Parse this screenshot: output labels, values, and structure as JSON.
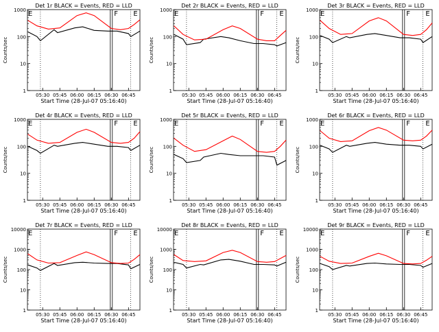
{
  "colors": {
    "events": "#000000",
    "lld": "#ff0000",
    "axes": "#000000"
  },
  "chart_data": [
    {
      "type": "line",
      "title": "Det 1r BLACK = Events, RED = LLD",
      "xlabel": "Start Time (28-Jul-07 05:16:40)",
      "ylabel": "Counts/sec",
      "y_scale": "log",
      "ylim": [
        1,
        1000
      ],
      "y_ticks": [
        1,
        10,
        100,
        1000
      ],
      "xlim": [
        "05:16:40",
        "06:55:00"
      ],
      "x_ticks": [
        "05:30",
        "05:45",
        "06:00",
        "06:15",
        "06:30",
        "06:45"
      ],
      "markers": {
        "F": "06:30",
        "E": "06:48"
      },
      "series": [
        {
          "name": "Events",
          "x": [
            "05:17",
            "05:25",
            "05:28",
            "05:40",
            "05:43",
            "05:58",
            "06:05",
            "06:15",
            "06:27",
            "06:35",
            "06:45",
            "06:47",
            "06:55"
          ],
          "values": [
            150,
            100,
            70,
            180,
            140,
            210,
            230,
            170,
            160,
            160,
            130,
            100,
            160
          ]
        },
        {
          "name": "LLD",
          "x": [
            "05:17",
            "05:25",
            "05:35",
            "05:45",
            "06:00",
            "06:08",
            "06:15",
            "06:30",
            "06:38",
            "06:45",
            "06:50",
            "06:55"
          ],
          "values": [
            400,
            250,
            190,
            210,
            600,
            760,
            600,
            200,
            180,
            200,
            280,
            420
          ]
        }
      ]
    },
    {
      "type": "line",
      "title": "Det 2r BLACK = Events, RED = LLD",
      "xlabel": "Start Time (28-Jul-07 05:16:40)",
      "ylabel": "Counts/sec",
      "y_scale": "log",
      "ylim": [
        1,
        1000
      ],
      "y_ticks": [
        1,
        10,
        100,
        1000
      ],
      "xlim": [
        "05:16:40",
        "06:55:00"
      ],
      "x_ticks": [
        "05:30",
        "05:45",
        "06:00",
        "06:15",
        "06:30",
        "06:45"
      ],
      "markers": {
        "F": "06:30",
        "E": "06:48"
      },
      "series": [
        {
          "name": "Events",
          "x": [
            "05:17",
            "05:25",
            "05:28",
            "05:40",
            "05:43",
            "05:58",
            "06:05",
            "06:15",
            "06:27",
            "06:35",
            "06:45",
            "06:47",
            "06:55"
          ],
          "values": [
            120,
            80,
            50,
            60,
            80,
            100,
            90,
            70,
            55,
            55,
            50,
            45,
            60
          ]
        },
        {
          "name": "LLD",
          "x": [
            "05:17",
            "05:25",
            "05:35",
            "05:45",
            "06:00",
            "06:08",
            "06:15",
            "06:30",
            "06:38",
            "06:45",
            "06:50",
            "06:55"
          ],
          "values": [
            250,
            120,
            75,
            80,
            180,
            250,
            200,
            80,
            70,
            70,
            110,
            170
          ]
        }
      ]
    },
    {
      "type": "line",
      "title": "Det 3r BLACK = Events, RED = LLD",
      "xlabel": "Start Time (28-Jul-07 05:16:40)",
      "ylabel": "Counts/sec",
      "y_scale": "log",
      "ylim": [
        1,
        1000
      ],
      "y_ticks": [
        1,
        10,
        100,
        1000
      ],
      "xlim": [
        "05:16:40",
        "06:55:00"
      ],
      "x_ticks": [
        "05:30",
        "05:45",
        "06:00",
        "06:15",
        "06:30",
        "06:45"
      ],
      "markers": {
        "F": "06:30",
        "E": "06:48"
      },
      "series": [
        {
          "name": "Events",
          "x": [
            "05:17",
            "05:25",
            "05:28",
            "05:40",
            "05:43",
            "05:58",
            "06:05",
            "06:15",
            "06:27",
            "06:35",
            "06:45",
            "06:47",
            "06:55"
          ],
          "values": [
            110,
            80,
            60,
            100,
            90,
            120,
            130,
            110,
            90,
            90,
            80,
            60,
            100
          ]
        },
        {
          "name": "LLD",
          "x": [
            "05:17",
            "05:25",
            "05:35",
            "05:45",
            "06:00",
            "06:08",
            "06:15",
            "06:30",
            "06:38",
            "06:45",
            "06:50",
            "06:55"
          ],
          "values": [
            400,
            200,
            120,
            130,
            380,
            500,
            380,
            120,
            110,
            120,
            180,
            320
          ]
        }
      ]
    },
    {
      "type": "line",
      "title": "Det 4r BLACK = Events, RED = LLD",
      "xlabel": "Start Time (28-Jul-07 05:16:40)",
      "ylabel": "Counts/sec",
      "y_scale": "log",
      "ylim": [
        1,
        1000
      ],
      "y_ticks": [
        1,
        10,
        100,
        1000
      ],
      "xlim": [
        "05:16:40",
        "06:55:00"
      ],
      "x_ticks": [
        "05:30",
        "05:45",
        "06:00",
        "06:15",
        "06:30",
        "06:45"
      ],
      "markers": {
        "F": "06:30",
        "E": "06:48"
      },
      "series": [
        {
          "name": "Events",
          "x": [
            "05:17",
            "05:25",
            "05:28",
            "05:40",
            "05:43",
            "05:58",
            "06:05",
            "06:15",
            "06:27",
            "06:35",
            "06:45",
            "06:47",
            "06:55"
          ],
          "values": [
            100,
            70,
            55,
            110,
            100,
            130,
            140,
            120,
            100,
            100,
            90,
            70,
            110
          ]
        },
        {
          "name": "LLD",
          "x": [
            "05:17",
            "05:25",
            "05:35",
            "05:45",
            "06:00",
            "06:08",
            "06:15",
            "06:30",
            "06:38",
            "06:45",
            "06:50",
            "06:55"
          ],
          "values": [
            280,
            170,
            130,
            140,
            330,
            430,
            330,
            140,
            130,
            140,
            200,
            350
          ]
        }
      ]
    },
    {
      "type": "line",
      "title": "Det 5r BLACK = Events, RED = LLD",
      "xlabel": "Start Time (28-Jul-07 05:16:40)",
      "ylabel": "Counts/sec",
      "y_scale": "log",
      "ylim": [
        1,
        1000
      ],
      "y_ticks": [
        1,
        10,
        100,
        1000
      ],
      "xlim": [
        "05:16:40",
        "06:55:00"
      ],
      "x_ticks": [
        "05:30",
        "05:45",
        "06:00",
        "06:15",
        "06:30",
        "06:45"
      ],
      "markers": {
        "F": "06:30",
        "E": "06:48"
      },
      "series": [
        {
          "name": "Events",
          "x": [
            "05:17",
            "05:25",
            "05:28",
            "05:40",
            "05:43",
            "05:58",
            "06:05",
            "06:15",
            "06:27",
            "06:35",
            "06:45",
            "06:47",
            "06:55"
          ],
          "values": [
            50,
            35,
            25,
            30,
            40,
            55,
            50,
            45,
            45,
            45,
            40,
            20,
            30
          ]
        },
        {
          "name": "LLD",
          "x": [
            "05:17",
            "05:25",
            "05:35",
            "05:45",
            "06:00",
            "06:08",
            "06:15",
            "06:30",
            "06:38",
            "06:45",
            "06:50",
            "06:55"
          ],
          "values": [
            200,
            110,
            65,
            75,
            160,
            240,
            180,
            65,
            60,
            65,
            100,
            170
          ]
        }
      ]
    },
    {
      "type": "line",
      "title": "Det 6r BLACK = Events, RED = LLD",
      "xlabel": "Start Time (28-Jul-07 05:16:40)",
      "ylabel": "Counts/sec",
      "y_scale": "log",
      "ylim": [
        1,
        1000
      ],
      "y_ticks": [
        1,
        10,
        100,
        1000
      ],
      "xlim": [
        "05:16:40",
        "06:55:00"
      ],
      "x_ticks": [
        "05:30",
        "05:45",
        "06:00",
        "06:15",
        "06:30",
        "06:45"
      ],
      "markers": {
        "F": "06:30",
        "E": "06:48"
      },
      "series": [
        {
          "name": "Events",
          "x": [
            "05:17",
            "05:25",
            "05:28",
            "05:40",
            "05:43",
            "05:58",
            "06:05",
            "06:15",
            "06:27",
            "06:35",
            "06:45",
            "06:47",
            "06:55"
          ],
          "values": [
            110,
            80,
            60,
            110,
            100,
            130,
            140,
            120,
            110,
            110,
            100,
            80,
            120
          ]
        },
        {
          "name": "LLD",
          "x": [
            "05:17",
            "05:25",
            "05:35",
            "05:45",
            "06:00",
            "06:08",
            "06:15",
            "06:30",
            "06:38",
            "06:45",
            "06:50",
            "06:55"
          ],
          "values": [
            380,
            200,
            150,
            160,
            380,
            500,
            400,
            170,
            160,
            170,
            240,
            400
          ]
        }
      ]
    },
    {
      "type": "line",
      "title": "Det 7r BLACK = Events, RED = LLD",
      "xlabel": "Start Time (28-Jul-07 05:16:40)",
      "ylabel": "Counts/sec",
      "y_scale": "log",
      "ylim": [
        1,
        10000
      ],
      "y_ticks": [
        1,
        10,
        100,
        1000,
        10000
      ],
      "xlim": [
        "05:16:40",
        "06:55:00"
      ],
      "x_ticks": [
        "05:30",
        "05:45",
        "06:00",
        "06:15",
        "06:30",
        "06:45"
      ],
      "markers": {
        "F": "06:30",
        "E": "06:48"
      },
      "series": [
        {
          "name": "Events",
          "x": [
            "05:17",
            "05:25",
            "05:28",
            "05:40",
            "05:43",
            "05:58",
            "06:05",
            "06:15",
            "06:27",
            "06:35",
            "06:45",
            "06:47",
            "06:55"
          ],
          "values": [
            170,
            120,
            90,
            200,
            160,
            220,
            230,
            210,
            200,
            200,
            170,
            110,
            180
          ]
        },
        {
          "name": "LLD",
          "x": [
            "05:17",
            "05:25",
            "05:35",
            "05:45",
            "06:00",
            "06:08",
            "06:15",
            "06:30",
            "06:38",
            "06:45",
            "06:50",
            "06:55"
          ],
          "values": [
            600,
            300,
            210,
            220,
            500,
            750,
            550,
            220,
            200,
            210,
            320,
            550
          ]
        }
      ]
    },
    {
      "type": "line",
      "title": "Det 8r BLACK = Events, RED = LLD",
      "xlabel": "Start Time (28-Jul-07 05:16:40)",
      "ylabel": "Counts/sec",
      "y_scale": "log",
      "ylim": [
        1,
        10000
      ],
      "y_ticks": [
        1,
        10,
        100,
        1000,
        10000
      ],
      "xlim": [
        "05:16:40",
        "06:55:00"
      ],
      "x_ticks": [
        "05:30",
        "05:45",
        "06:00",
        "06:15",
        "06:30",
        "06:45"
      ],
      "markers": {
        "F": "06:30",
        "E": "06:48"
      },
      "series": [
        {
          "name": "Events",
          "x": [
            "05:17",
            "05:25",
            "05:28",
            "05:40",
            "05:43",
            "05:58",
            "06:05",
            "06:15",
            "06:27",
            "06:35",
            "06:45",
            "06:47",
            "06:55"
          ],
          "values": [
            230,
            180,
            120,
            180,
            170,
            300,
            320,
            260,
            180,
            180,
            170,
            150,
            230
          ]
        },
        {
          "name": "LLD",
          "x": [
            "05:17",
            "05:25",
            "05:35",
            "05:45",
            "06:00",
            "06:08",
            "06:15",
            "06:30",
            "06:38",
            "06:45",
            "06:50",
            "06:55"
          ],
          "values": [
            550,
            280,
            250,
            270,
            700,
            900,
            700,
            250,
            230,
            250,
            350,
            500
          ]
        }
      ]
    },
    {
      "type": "line",
      "title": "Det 9r BLACK = Events, RED = LLD",
      "xlabel": "Start Time (28-Jul-07 05:16:40)",
      "ylabel": "Counts/sec",
      "y_scale": "log",
      "ylim": [
        1,
        10000
      ],
      "y_ticks": [
        1,
        10,
        100,
        1000,
        10000
      ],
      "xlim": [
        "05:16:40",
        "06:55:00"
      ],
      "x_ticks": [
        "05:30",
        "05:45",
        "06:00",
        "06:15",
        "06:30",
        "06:45"
      ],
      "markers": {
        "F": "06:30",
        "E": "06:48"
      },
      "series": [
        {
          "name": "Events",
          "x": [
            "05:17",
            "05:25",
            "05:28",
            "05:40",
            "05:43",
            "05:58",
            "06:05",
            "06:15",
            "06:27",
            "06:35",
            "06:45",
            "06:47",
            "06:55"
          ],
          "values": [
            200,
            140,
            100,
            160,
            150,
            200,
            210,
            190,
            180,
            180,
            160,
            130,
            200
          ]
        },
        {
          "name": "LLD",
          "x": [
            "05:17",
            "05:25",
            "05:35",
            "05:45",
            "06:00",
            "06:08",
            "06:15",
            "06:30",
            "06:38",
            "06:45",
            "06:50",
            "06:55"
          ],
          "values": [
            450,
            260,
            200,
            210,
            450,
            640,
            480,
            200,
            190,
            200,
            290,
            450
          ]
        }
      ]
    }
  ]
}
